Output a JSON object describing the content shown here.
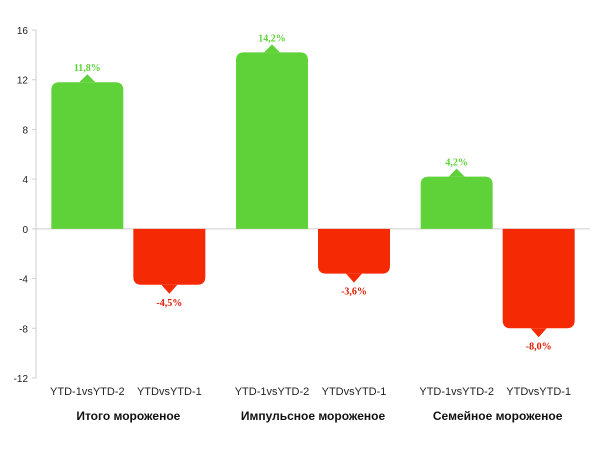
{
  "chart_data": {
    "type": "bar",
    "y_ticks": [
      "16",
      "12",
      "8",
      "4",
      "0",
      "-4",
      "-8",
      "-12"
    ],
    "y_tick_values": [
      16,
      12,
      8,
      4,
      0,
      -4,
      -8,
      -12
    ],
    "ylim": [
      -12,
      16
    ],
    "grid": false,
    "groups": [
      {
        "label": "Итого мороженое",
        "bars": [
          {
            "label": "YTD-1vsYTD-2",
            "value": 11.8,
            "data_label": "11,8%"
          },
          {
            "label": "YTDvsYTD-1",
            "value": -4.5,
            "data_label": "-4,5%"
          }
        ]
      },
      {
        "label": "Импульсное мороженое",
        "bars": [
          {
            "label": "YTD-1vsYTD-2",
            "value": 14.2,
            "data_label": "14,2%"
          },
          {
            "label": "YTDvsYTD-1",
            "value": -3.6,
            "data_label": "-3,6%"
          }
        ]
      },
      {
        "label": "Семейное мороженое",
        "bars": [
          {
            "label": "YTD-1vsYTD-2",
            "value": 4.2,
            "data_label": "4,2%"
          },
          {
            "label": "YTDvsYTD-1",
            "value": -8.0,
            "data_label": "-8,0%"
          }
        ]
      }
    ],
    "colors": {
      "positive": "#5fd23a",
      "negative": "#f52a05",
      "positive_label": "#5fd23a",
      "negative_label": "#e01a00",
      "axis": "#cfcfcf"
    }
  }
}
